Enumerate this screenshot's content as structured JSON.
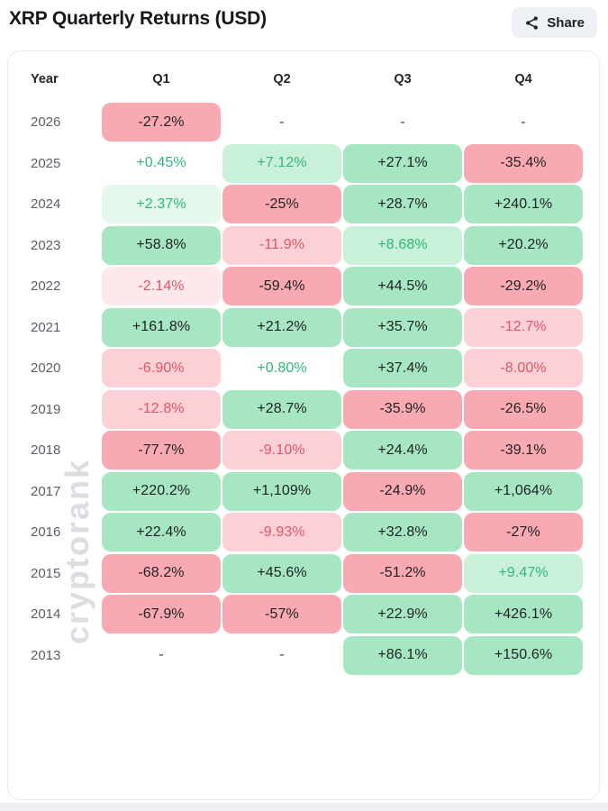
{
  "header": {
    "title": "XRP Quarterly Returns (USD)",
    "share_label": "Share"
  },
  "watermark": "cryptorank",
  "table": {
    "columns": [
      "Year",
      "Q1",
      "Q2",
      "Q3",
      "Q4"
    ]
  },
  "chart_data": {
    "type": "heatmap",
    "title": "XRP Quarterly Returns (USD)",
    "unit": "percent quarterly return",
    "columns": [
      "Q1",
      "Q2",
      "Q3",
      "Q4"
    ],
    "color_rule": "green = positive, red = negative; background intensity scales with magnitude; dash = no data",
    "rows": [
      {
        "year": "2026",
        "values": [
          "-27.2%",
          "-",
          "-",
          "-"
        ],
        "tiers": [
          "neg-3",
          "none",
          "none",
          "none"
        ]
      },
      {
        "year": "2025",
        "values": [
          "+0.45%",
          "+7.12%",
          "+27.1%",
          "-35.4%"
        ],
        "tiers": [
          "pos-0",
          "pos-2",
          "pos-3",
          "neg-3"
        ]
      },
      {
        "year": "2024",
        "values": [
          "+2.37%",
          "-25%",
          "+28.7%",
          "+240.1%"
        ],
        "tiers": [
          "pos-1",
          "neg-3",
          "pos-3",
          "pos-3"
        ]
      },
      {
        "year": "2023",
        "values": [
          "+58.8%",
          "-11.9%",
          "+8.68%",
          "+20.2%"
        ],
        "tiers": [
          "pos-3",
          "neg-2",
          "pos-2",
          "pos-3"
        ]
      },
      {
        "year": "2022",
        "values": [
          "-2.14%",
          "-59.4%",
          "+44.5%",
          "-29.2%"
        ],
        "tiers": [
          "neg-1",
          "neg-3",
          "pos-3",
          "neg-3"
        ]
      },
      {
        "year": "2021",
        "values": [
          "+161.8%",
          "+21.2%",
          "+35.7%",
          "-12.7%"
        ],
        "tiers": [
          "pos-3",
          "pos-3",
          "pos-3",
          "neg-2"
        ]
      },
      {
        "year": "2020",
        "values": [
          "-6.90%",
          "+0.80%",
          "+37.4%",
          "-8.00%"
        ],
        "tiers": [
          "neg-2",
          "pos-0",
          "pos-3",
          "neg-2"
        ]
      },
      {
        "year": "2019",
        "values": [
          "-12.8%",
          "+28.7%",
          "-35.9%",
          "-26.5%"
        ],
        "tiers": [
          "neg-2",
          "pos-3",
          "neg-3",
          "neg-3"
        ]
      },
      {
        "year": "2018",
        "values": [
          "-77.7%",
          "-9.10%",
          "+24.4%",
          "-39.1%"
        ],
        "tiers": [
          "neg-3",
          "neg-2",
          "pos-3",
          "neg-3"
        ]
      },
      {
        "year": "2017",
        "values": [
          "+220.2%",
          "+1,109%",
          "-24.9%",
          "+1,064%"
        ],
        "tiers": [
          "pos-3",
          "pos-3",
          "neg-3",
          "pos-3"
        ]
      },
      {
        "year": "2016",
        "values": [
          "+22.4%",
          "-9.93%",
          "+32.8%",
          "-27%"
        ],
        "tiers": [
          "pos-3",
          "neg-2",
          "pos-3",
          "neg-3"
        ]
      },
      {
        "year": "2015",
        "values": [
          "-68.2%",
          "+45.6%",
          "-51.2%",
          "+9.47%"
        ],
        "tiers": [
          "neg-3",
          "pos-3",
          "neg-3",
          "pos-2"
        ]
      },
      {
        "year": "2014",
        "values": [
          "-67.9%",
          "-57%",
          "+22.9%",
          "+426.1%"
        ],
        "tiers": [
          "neg-3",
          "neg-3",
          "pos-3",
          "pos-3"
        ]
      },
      {
        "year": "2013",
        "values": [
          "-",
          "-",
          "+86.1%",
          "+150.6%"
        ],
        "tiers": [
          "none",
          "none",
          "pos-3",
          "pos-3"
        ]
      }
    ]
  },
  "colors": {
    "green_medium": "#a6e6c2",
    "green_light": "#c9f1da",
    "green_xlight": "#e4f8ec",
    "red_medium": "#f9a9b1",
    "red_light": "#fbd0d6",
    "red_xlight": "#fde9ec",
    "green_text": "#2fb879",
    "red_text": "#e25565",
    "dark_text": "#1e2126",
    "watermark_gray": "#dcdde1",
    "share_button_bg": "#edf0f4",
    "card_border": "#e9eaef"
  }
}
